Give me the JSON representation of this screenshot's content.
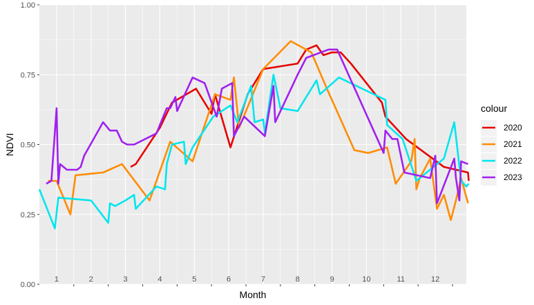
{
  "chart_data": {
    "type": "line",
    "title": "",
    "xlabel": "Month",
    "ylabel": "NDVI",
    "xlim": [
      0.5,
      12.9
    ],
    "ylim": [
      0,
      1
    ],
    "y_ticks": [
      {
        "value": 0,
        "label": "0.00"
      },
      {
        "value": 0.25,
        "label": "0.25"
      },
      {
        "value": 0.5,
        "label": "0.50"
      },
      {
        "value": 0.75,
        "label": "0.75"
      },
      {
        "value": 1,
        "label": "1.00"
      }
    ],
    "x_ticks": [
      1,
      2,
      3,
      4,
      5,
      6,
      7,
      8,
      9,
      10,
      11,
      12
    ],
    "month_labels": [
      "1",
      "2",
      "3",
      "4",
      "5",
      "6",
      "7",
      "8",
      "9",
      "10",
      "11",
      "12"
    ],
    "grid": true,
    "legend": {
      "title": "colour",
      "position": "right"
    },
    "series": [
      {
        "name": "2020",
        "color": "#e60000",
        "points": [
          [
            3.15,
            0.42
          ],
          [
            3.3,
            0.43
          ],
          [
            4.0,
            0.56
          ],
          [
            4.35,
            0.65
          ],
          [
            5.05,
            0.7
          ],
          [
            5.5,
            0.61
          ],
          [
            5.6,
            0.68
          ],
          [
            6.05,
            0.49
          ],
          [
            6.55,
            0.68
          ],
          [
            7.0,
            0.77
          ],
          [
            7.5,
            0.78
          ],
          [
            8.0,
            0.79
          ],
          [
            8.25,
            0.84
          ],
          [
            8.55,
            0.855
          ],
          [
            8.75,
            0.82
          ],
          [
            9.0,
            0.83
          ],
          [
            9.25,
            0.83
          ],
          [
            9.55,
            0.79
          ],
          [
            10.45,
            0.65
          ],
          [
            10.55,
            0.6
          ],
          [
            11.15,
            0.52
          ],
          [
            12.25,
            0.42
          ],
          [
            12.95,
            0.4
          ],
          [
            12.97,
            0.37
          ]
        ]
      },
      {
        "name": "2021",
        "color": "#ff8c00",
        "points": [
          [
            0.75,
            0.37
          ],
          [
            1.0,
            0.37
          ],
          [
            1.4,
            0.25
          ],
          [
            1.55,
            0.39
          ],
          [
            2.35,
            0.4
          ],
          [
            2.9,
            0.43
          ],
          [
            3.7,
            0.3
          ],
          [
            4.3,
            0.51
          ],
          [
            4.95,
            0.44
          ],
          [
            5.6,
            0.68
          ],
          [
            6.05,
            0.66
          ],
          [
            6.15,
            0.74
          ],
          [
            6.3,
            0.56
          ],
          [
            7.0,
            0.77
          ],
          [
            7.8,
            0.87
          ],
          [
            8.4,
            0.83
          ],
          [
            8.85,
            0.7
          ],
          [
            9.65,
            0.48
          ],
          [
            10.05,
            0.47
          ],
          [
            10.6,
            0.49
          ],
          [
            10.85,
            0.36
          ],
          [
            11.3,
            0.44
          ],
          [
            11.4,
            0.52
          ],
          [
            11.45,
            0.34
          ],
          [
            11.55,
            0.38
          ],
          [
            11.85,
            0.45
          ],
          [
            12.05,
            0.27
          ],
          [
            12.25,
            0.32
          ],
          [
            12.45,
            0.23
          ],
          [
            12.6,
            0.3
          ],
          [
            12.75,
            0.38
          ],
          [
            12.95,
            0.29
          ]
        ]
      },
      {
        "name": "2022",
        "color": "#00e5ee",
        "points": [
          [
            0.5,
            0.34
          ],
          [
            0.95,
            0.2
          ],
          [
            1.05,
            0.31
          ],
          [
            2.0,
            0.3
          ],
          [
            2.5,
            0.22
          ],
          [
            2.55,
            0.29
          ],
          [
            2.7,
            0.28
          ],
          [
            3.0,
            0.3
          ],
          [
            3.25,
            0.32
          ],
          [
            3.3,
            0.27
          ],
          [
            3.9,
            0.35
          ],
          [
            4.15,
            0.34
          ],
          [
            4.2,
            0.43
          ],
          [
            4.35,
            0.5
          ],
          [
            4.7,
            0.51
          ],
          [
            4.75,
            0.43
          ],
          [
            4.95,
            0.49
          ],
          [
            5.55,
            0.6
          ],
          [
            6.05,
            0.64
          ],
          [
            6.25,
            0.58
          ],
          [
            6.65,
            0.71
          ],
          [
            6.75,
            0.58
          ],
          [
            7.0,
            0.59
          ],
          [
            7.05,
            0.54
          ],
          [
            7.3,
            0.75
          ],
          [
            7.5,
            0.63
          ],
          [
            8.0,
            0.62
          ],
          [
            8.55,
            0.73
          ],
          [
            8.65,
            0.68
          ],
          [
            9.2,
            0.74
          ],
          [
            10.55,
            0.66
          ],
          [
            10.6,
            0.57
          ],
          [
            11.05,
            0.52
          ],
          [
            11.45,
            0.37
          ],
          [
            12.25,
            0.45
          ],
          [
            12.55,
            0.58
          ],
          [
            12.75,
            0.37
          ],
          [
            12.9,
            0.35
          ],
          [
            12.97,
            0.36
          ]
        ]
      },
      {
        "name": "2023",
        "color": "#a020f0",
        "points": [
          [
            0.7,
            0.36
          ],
          [
            0.85,
            0.37
          ],
          [
            1.0,
            0.63
          ],
          [
            1.05,
            0.36
          ],
          [
            1.1,
            0.43
          ],
          [
            1.3,
            0.41
          ],
          [
            1.6,
            0.41
          ],
          [
            1.7,
            0.42
          ],
          [
            1.8,
            0.46
          ],
          [
            2.35,
            0.58
          ],
          [
            2.55,
            0.55
          ],
          [
            2.75,
            0.55
          ],
          [
            2.9,
            0.51
          ],
          [
            3.05,
            0.5
          ],
          [
            3.25,
            0.5
          ],
          [
            3.9,
            0.54
          ],
          [
            4.2,
            0.63
          ],
          [
            4.3,
            0.63
          ],
          [
            4.45,
            0.67
          ],
          [
            4.5,
            0.62
          ],
          [
            4.95,
            0.74
          ],
          [
            5.3,
            0.72
          ],
          [
            5.65,
            0.6
          ],
          [
            5.8,
            0.7
          ],
          [
            6.1,
            0.72
          ],
          [
            6.15,
            0.53
          ],
          [
            6.45,
            0.6
          ],
          [
            7.05,
            0.53
          ],
          [
            7.3,
            0.71
          ],
          [
            7.35,
            0.58
          ],
          [
            8.0,
            0.75
          ],
          [
            8.25,
            0.81
          ],
          [
            8.9,
            0.84
          ],
          [
            9.15,
            0.84
          ],
          [
            10.5,
            0.47
          ],
          [
            10.55,
            0.55
          ],
          [
            10.75,
            0.52
          ],
          [
            10.9,
            0.52
          ],
          [
            11.1,
            0.4
          ],
          [
            11.85,
            0.38
          ],
          [
            12.0,
            0.46
          ],
          [
            12.05,
            0.29
          ],
          [
            12.3,
            0.37
          ],
          [
            12.55,
            0.45
          ],
          [
            12.6,
            0.38
          ],
          [
            12.7,
            0.3
          ],
          [
            12.75,
            0.44
          ],
          [
            12.95,
            0.43
          ]
        ]
      }
    ]
  }
}
